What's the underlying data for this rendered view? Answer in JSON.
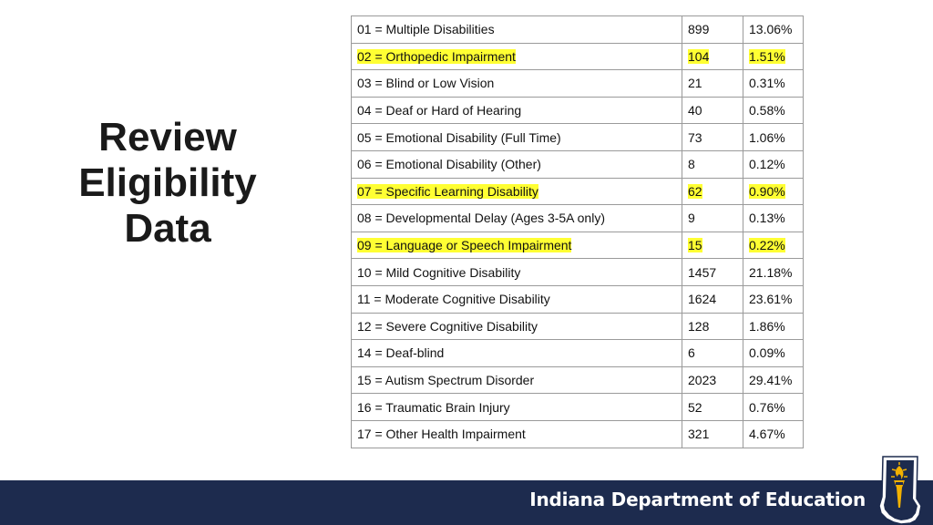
{
  "title_lines": [
    "Review",
    "Eligibility",
    "Data"
  ],
  "rows": [
    {
      "label": "01 = Multiple Disabilities",
      "count": "899",
      "pct": "13.06%",
      "highlight": false
    },
    {
      "label": "02 = Orthopedic Impairment",
      "count": "104",
      "pct": "1.51%",
      "highlight": true
    },
    {
      "label": "03 = Blind or Low Vision",
      "count": "21",
      "pct": "0.31%",
      "highlight": false
    },
    {
      "label": "04 = Deaf or Hard of Hearing",
      "count": "40",
      "pct": "0.58%",
      "highlight": false
    },
    {
      "label": "05 = Emotional Disability (Full Time)",
      "count": "73",
      "pct": "1.06%",
      "highlight": false
    },
    {
      "label": "06 = Emotional Disability (Other)",
      "count": "8",
      "pct": "0.12%",
      "highlight": false
    },
    {
      "label": "07 = Specific Learning Disability",
      "count": "62",
      "pct": "0.90%",
      "highlight": true
    },
    {
      "label": "08 = Developmental Delay (Ages 3-5A only)",
      "count": "9",
      "pct": "0.13%",
      "highlight": false
    },
    {
      "label": "09 = Language or Speech Impairment",
      "count": "15",
      "pct": "0.22%",
      "highlight": true
    },
    {
      "label": "10 = Mild Cognitive Disability",
      "count": "1457",
      "pct": "21.18%",
      "highlight": false
    },
    {
      "label": "11 = Moderate Cognitive Disability",
      "count": "1624",
      "pct": "23.61%",
      "highlight": false
    },
    {
      "label": "12 = Severe Cognitive Disability",
      "count": "128",
      "pct": "1.86%",
      "highlight": false
    },
    {
      "label": "14 = Deaf-blind",
      "count": "6",
      "pct": "0.09%",
      "highlight": false
    },
    {
      "label": "15 = Autism Spectrum Disorder",
      "count": "2023",
      "pct": "29.41%",
      "highlight": false
    },
    {
      "label": "16 = Traumatic Brain Injury",
      "count": "52",
      "pct": "0.76%",
      "highlight": false
    },
    {
      "label": "17 = Other Health Impairment",
      "count": "321",
      "pct": "4.67%",
      "highlight": false
    }
  ],
  "footer": {
    "org_name": "Indiana Department of Education"
  },
  "colors": {
    "highlight": "#ffff33",
    "footer_bg": "#1d2b4e",
    "logo_gold": "#f2b100"
  },
  "logo": {
    "icon": "torch-indiana-state-icon"
  }
}
